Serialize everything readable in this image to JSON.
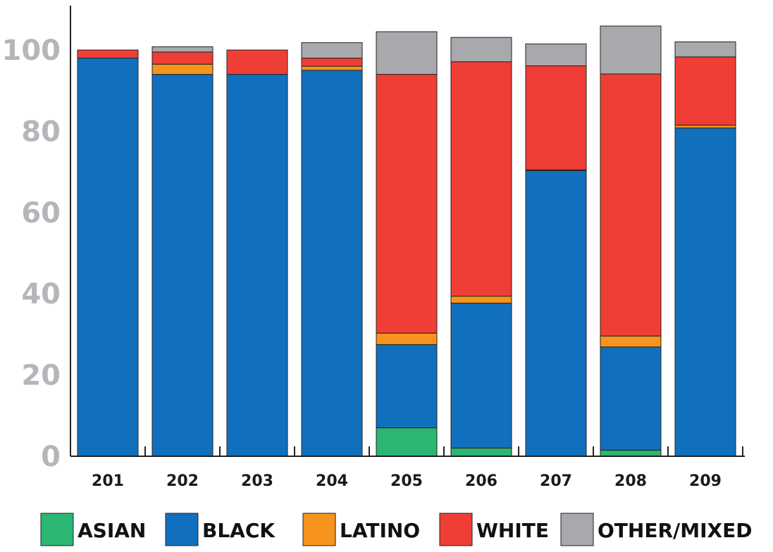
{
  "chart_data": {
    "type": "bar",
    "stacked": true,
    "title": "",
    "xlabel": "",
    "ylabel": "",
    "ylim": [
      0,
      110
    ],
    "yticks": [
      0,
      20,
      40,
      60,
      80,
      100
    ],
    "ytick_labels": [
      "0",
      "20",
      "40",
      "60",
      "80",
      "100"
    ],
    "categories": [
      "201",
      "202",
      "203",
      "204",
      "205",
      "206",
      "207",
      "208",
      "209"
    ],
    "legend_position": "bottom",
    "series": [
      {
        "name": "ASIAN",
        "color": "#2bb673",
        "values": [
          0,
          0,
          0,
          0,
          7,
          2,
          0,
          1.5,
          0
        ]
      },
      {
        "name": "BLACK",
        "color": "#1170bd",
        "values": [
          98,
          94,
          94,
          95,
          20.5,
          35.7,
          70.3,
          25.4,
          80.8
        ]
      },
      {
        "name": "LATINO",
        "color": "#f7941d",
        "values": [
          0,
          2.5,
          0,
          1,
          2.8,
          1.7,
          0.2,
          2.7,
          0.7
        ]
      },
      {
        "name": "WHITE",
        "color": "#ef3e36",
        "values": [
          2,
          3,
          6,
          2,
          63.7,
          57.7,
          25.6,
          64.5,
          16.8
        ]
      },
      {
        "name": "OTHER/MIXED",
        "color": "#a7a9ac",
        "values": [
          0,
          1.3,
          0,
          3.8,
          10.5,
          6,
          5.4,
          11.8,
          3.7
        ]
      }
    ]
  }
}
